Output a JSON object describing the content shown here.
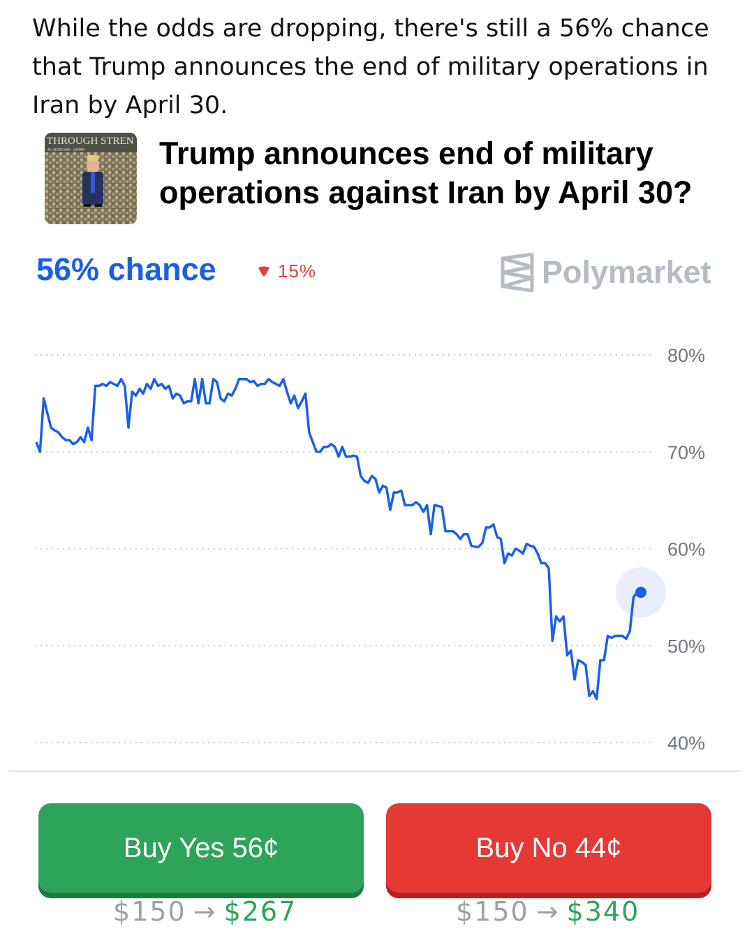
{
  "post": {
    "text": "While the odds are dropping, there's still a 56% chance that Trump announces the end of military operations in Iran by April 30."
  },
  "card": {
    "thumbnail_text": "THROUGH STREN",
    "thumbnail_subtext": "AL UDEID AIR · QATAR",
    "title": "Trump announces end of military operations against Iran by April 30?"
  },
  "market": {
    "chance_label": "56% chance",
    "change_label": "15%",
    "change_direction": "down",
    "brand": "Polymarket",
    "accent_color": "#1a5fe6",
    "down_color": "#e2413b"
  },
  "chart_data": {
    "type": "line",
    "title": "",
    "xlabel": "",
    "ylabel": "",
    "ylim": [
      40,
      80
    ],
    "y_ticks": [
      "80%",
      "70%",
      "60%",
      "50%",
      "40%"
    ],
    "grid": "dotted horizontal",
    "series": [
      {
        "color": "#1a5fe6",
        "values": [
          71,
          70,
          75.5,
          74,
          72.5,
          72.2,
          72,
          71.5,
          71.2,
          71.2,
          70.8,
          71,
          71.5,
          71,
          72.5,
          71.2,
          76.8,
          76.8,
          77,
          76.8,
          77.2,
          77,
          76.8,
          77.5,
          76.8,
          72.5,
          76.2,
          75.8,
          76.5,
          76,
          77,
          76.5,
          77.5,
          76.8,
          77,
          76.5,
          76.8,
          75.5,
          76,
          75.8,
          75,
          75.2,
          75.2,
          77.5,
          75,
          77.5,
          75,
          75,
          77.5,
          77.2,
          75.5,
          75.2,
          76,
          75.8,
          76.5,
          77.5,
          77.5,
          77.5,
          77.2,
          77.3,
          76.8,
          77,
          77,
          77.5,
          77.2,
          77,
          76.8,
          77.5,
          76.2,
          75,
          75.8,
          74.5,
          75.2,
          76,
          72,
          71,
          70,
          70,
          70.5,
          70.5,
          70.8,
          70.5,
          69.5,
          70.5,
          69.5,
          69.5,
          69.6,
          69.5,
          67.5,
          67,
          66.8,
          67.5,
          67.2,
          65.8,
          66.5,
          66.3,
          64,
          65.8,
          65.8,
          66,
          64.5,
          64.5,
          64.5,
          64.8,
          64.5,
          63.8,
          64.5,
          61.5,
          64.5,
          64.4,
          64.3,
          61.8,
          61.8,
          61.8,
          61.5,
          61,
          61.5,
          61.5,
          60.3,
          60.2,
          60.2,
          60.6,
          62.2,
          62.2,
          62.5,
          61.2,
          61,
          58.5,
          59.5,
          59.3,
          60,
          59.8,
          59.5,
          60.5,
          60.3,
          60.2,
          59.5,
          58.5,
          58.5,
          58,
          50.5,
          53,
          52.5,
          53,
          49,
          49.5,
          46.5,
          48.5,
          48.3,
          48,
          44.8,
          45.3,
          44.5,
          48.5,
          48.5,
          51,
          50.8,
          51,
          51,
          51,
          50.7,
          51.5,
          55,
          55.5,
          55.5
        ]
      }
    ],
    "last_value": 55.5
  },
  "actions": {
    "yes_label": "Buy Yes 56¢",
    "no_label": "Buy No 44¢",
    "yes_from": "$150",
    "yes_to": "$267",
    "no_from": "$150",
    "no_to": "$340",
    "arrow": "→",
    "yes_color": "#2ea35a",
    "no_color": "#e53936"
  }
}
